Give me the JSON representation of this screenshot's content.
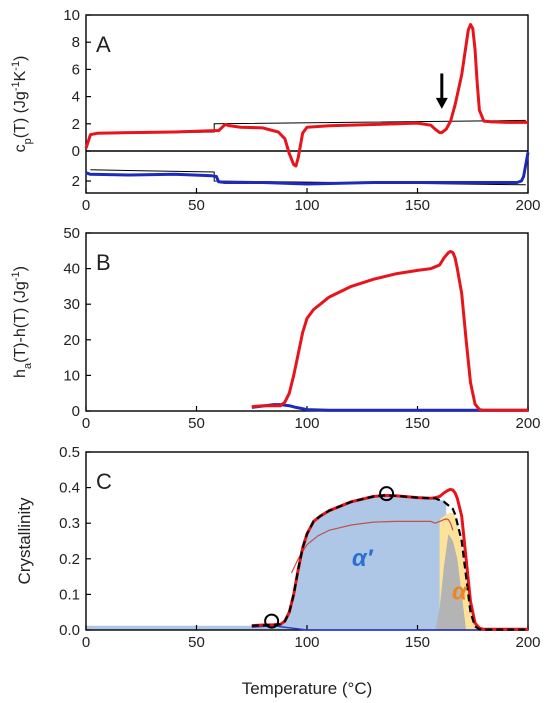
{
  "chart_data": [
    {
      "type": "line",
      "panel_label": "A",
      "ylabel_parts": [
        "c",
        "p",
        "(T)  (Jg",
        "-1",
        "K",
        "-1",
        ")"
      ],
      "xlim": [
        0,
        200
      ],
      "ylim": [
        0,
        10
      ],
      "yticks": [
        "10",
        "8",
        "6",
        "4",
        "2",
        "0"
      ],
      "ylim_lower": [
        0,
        2.8
      ],
      "yticks_lower": [
        "2"
      ],
      "xticks": [
        "0",
        "50",
        "100",
        "150",
        "200"
      ],
      "colors": {
        "upper": "#e8141b",
        "lower": "#1c2bbd",
        "baseline": "#000000"
      },
      "series": [
        {
          "color": "red",
          "x": [
            0,
            2,
            5,
            20,
            40,
            58,
            59,
            60,
            62,
            63,
            65,
            70,
            80,
            87,
            90,
            92,
            94,
            95,
            96,
            98,
            100,
            110,
            130,
            150,
            156,
            158,
            160,
            161,
            163,
            165,
            167,
            170,
            172,
            173,
            174,
            175,
            176,
            177,
            178,
            180,
            183,
            190,
            200
          ],
          "y": [
            0.2,
            1.2,
            1.3,
            1.35,
            1.4,
            1.5,
            1.5,
            1.5,
            1.8,
            1.95,
            1.85,
            1.75,
            1.7,
            1.4,
            0.9,
            -0.2,
            -1.0,
            -1.1,
            -0.5,
            1.3,
            1.75,
            1.85,
            1.95,
            2.05,
            1.9,
            1.6,
            1.35,
            1.35,
            1.6,
            2.2,
            3.4,
            5.6,
            7.8,
            8.9,
            9.3,
            9.0,
            7.5,
            5.0,
            3.0,
            2.2,
            2.15,
            2.1,
            2.1
          ]
        },
        {
          "color": "black",
          "x": [
            2,
            58,
            58,
            199
          ],
          "y": [
            1.25,
            1.4,
            2.0,
            2.25
          ]
        },
        {
          "color": "blue",
          "x": [
            0,
            2,
            20,
            40,
            57,
            59,
            60,
            63,
            70,
            80,
            100,
            130,
            160,
            180,
            195,
            197,
            198,
            199,
            200
          ],
          "y": [
            1.45,
            1.55,
            1.6,
            1.55,
            1.65,
            1.7,
            2.05,
            2.1,
            2.1,
            2.1,
            2.2,
            2.1,
            2.1,
            2.1,
            2.1,
            2.0,
            1.7,
            0.9,
            0.1
          ]
        }
      ],
      "annotation": {
        "type": "arrow",
        "x": 161,
        "y_from": 5.7,
        "y_to": 3.1
      }
    },
    {
      "type": "line",
      "panel_label": "B",
      "ylabel_parts": [
        "h",
        "a",
        "(T)-h(T)  (Jg",
        "-1",
        ")"
      ],
      "xlim": [
        0,
        200
      ],
      "ylim": [
        0,
        50
      ],
      "yticks": [
        "50",
        "40",
        "30",
        "20",
        "10",
        "0"
      ],
      "xticks": [
        "0",
        "50",
        "100",
        "150",
        "200"
      ],
      "series": [
        {
          "color": "red",
          "x": [
            75,
            80,
            85,
            88,
            90,
            92,
            94,
            96,
            98,
            100,
            103,
            106,
            110,
            120,
            130,
            140,
            150,
            156,
            158,
            160,
            162,
            164,
            165,
            166,
            167,
            168,
            170,
            172,
            174,
            176,
            178,
            180,
            200
          ],
          "y": [
            1.2,
            1.5,
            1.5,
            1.5,
            2.5,
            5.0,
            10.0,
            16.0,
            22.0,
            26.0,
            28.5,
            30.0,
            32.0,
            35.0,
            37.0,
            38.5,
            39.5,
            40.0,
            40.5,
            41.0,
            43.0,
            44.5,
            44.8,
            44.5,
            43.0,
            40.0,
            33.0,
            20.0,
            8.0,
            2.0,
            0.4,
            0.2,
            0.2
          ]
        },
        {
          "color": "blue",
          "x": [
            75,
            85,
            88,
            92,
            95,
            100,
            110,
            200
          ],
          "y": [
            1.0,
            1.8,
            1.8,
            1.5,
            1.0,
            0.4,
            0.2,
            0.2
          ]
        }
      ]
    },
    {
      "type": "area",
      "panel_label": "C",
      "ylabel": "Crystallinity",
      "xlabel": "Temperature (°C)",
      "xlim": [
        0,
        200
      ],
      "ylim": [
        0,
        0.5
      ],
      "yticks": [
        "0.5",
        "0.4",
        "0.3",
        "0.2",
        "0.1",
        "0.0"
      ],
      "xticks": [
        "0",
        "50",
        "100",
        "150",
        "200"
      ],
      "area_labels": {
        "alpha_prime": "α′",
        "alpha": "α"
      },
      "colors": {
        "alpha_prime_fill": "#aec7e6",
        "alpha_fill": "#fde29a",
        "gray_fill": "#b4b4b4",
        "red_line": "#e8141b",
        "blue_line": "#2a3bd6",
        "thin_line": "#c0504d",
        "dashed": "#000000",
        "alpha_prime_text": "#2d6ed1",
        "alpha_text": "#f08519"
      },
      "alpha_prime_area": {
        "x": [
          0,
          75,
          85,
          88,
          90,
          92,
          94,
          96,
          98,
          100,
          103,
          106,
          110,
          120,
          130,
          135,
          140,
          150,
          156,
          158,
          160,
          162,
          163
        ],
        "y": [
          0.012,
          0.012,
          0.012,
          0.012,
          0.025,
          0.05,
          0.1,
          0.17,
          0.23,
          0.27,
          0.305,
          0.32,
          0.335,
          0.36,
          0.375,
          0.378,
          0.377,
          0.372,
          0.37,
          0.37,
          0.365,
          0.365,
          0.36
        ]
      },
      "alpha_area": {
        "x": [
          160,
          162,
          164,
          166,
          167,
          168,
          170,
          172,
          174,
          176,
          178
        ],
        "y": [
          0.31,
          0.32,
          0.328,
          0.33,
          0.32,
          0.3,
          0.25,
          0.15,
          0.05,
          0.01,
          0.0
        ]
      },
      "gray_area": {
        "x": [
          158,
          160,
          162,
          164,
          166,
          168,
          170,
          172
        ],
        "y": [
          0.0,
          0.06,
          0.18,
          0.27,
          0.25,
          0.2,
          0.1,
          0.0
        ]
      },
      "series": [
        {
          "color": "red",
          "x": [
            75,
            80,
            85,
            88,
            90,
            92,
            94,
            96,
            98,
            100,
            103,
            106,
            110,
            120,
            130,
            135,
            140,
            150,
            156,
            158,
            160,
            162,
            164,
            165,
            166,
            167,
            168,
            170,
            172,
            174,
            176,
            178,
            180,
            200
          ],
          "y": [
            0.012,
            0.014,
            0.015,
            0.016,
            0.025,
            0.05,
            0.1,
            0.17,
            0.23,
            0.27,
            0.305,
            0.32,
            0.335,
            0.36,
            0.375,
            0.378,
            0.377,
            0.372,
            0.37,
            0.372,
            0.375,
            0.385,
            0.393,
            0.395,
            0.393,
            0.385,
            0.37,
            0.32,
            0.2,
            0.08,
            0.02,
            0.005,
            0.002,
            0.002
          ]
        },
        {
          "color": "dashed",
          "x": [
            75,
            85,
            88,
            90,
            92,
            94,
            96,
            98,
            100,
            103,
            106,
            110,
            120,
            130,
            135,
            140,
            150,
            156,
            158,
            160,
            162,
            163,
            164,
            166,
            167,
            168,
            170,
            172,
            174,
            176,
            178,
            180,
            200
          ],
          "y": [
            0.012,
            0.014,
            0.016,
            0.025,
            0.05,
            0.1,
            0.17,
            0.23,
            0.27,
            0.305,
            0.32,
            0.335,
            0.36,
            0.375,
            0.378,
            0.377,
            0.372,
            0.37,
            0.37,
            0.365,
            0.36,
            0.355,
            0.35,
            0.34,
            0.325,
            0.3,
            0.25,
            0.15,
            0.05,
            0.01,
            0.002,
            0.001,
            0.001
          ]
        },
        {
          "color": "thin",
          "x": [
            93,
            96,
            100,
            105,
            110,
            120,
            130,
            140,
            150,
            156,
            158,
            160,
            162,
            163,
            164,
            165,
            166
          ],
          "y": [
            0.16,
            0.2,
            0.24,
            0.265,
            0.28,
            0.295,
            0.303,
            0.305,
            0.305,
            0.305,
            0.3,
            0.305,
            0.31,
            0.312,
            0.31,
            0.3,
            0.28
          ]
        },
        {
          "color": "blue",
          "x": [
            75,
            85,
            90,
            95,
            100,
            200
          ],
          "y": [
            0.008,
            0.012,
            0.008,
            0.004,
            0.0,
            0.0
          ]
        }
      ],
      "markers": [
        {
          "x": 84,
          "y": 0.025
        },
        {
          "x": 136,
          "y": 0.383
        }
      ]
    }
  ]
}
